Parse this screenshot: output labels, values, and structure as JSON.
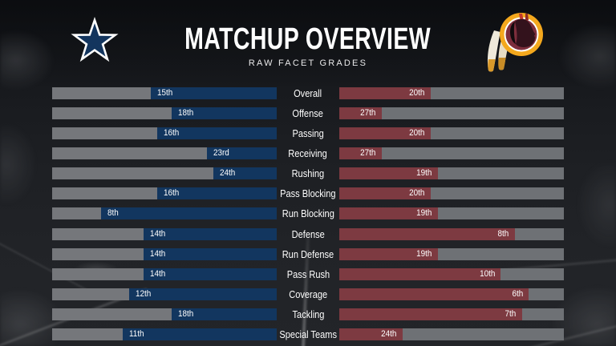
{
  "header": {
    "title": "MATCHUP OVERVIEW",
    "subtitle": "RAW FACET GRADES",
    "left_logo": "dallas-cowboys-star-logo",
    "right_logo": "washington-redskins-logo"
  },
  "colors": {
    "left_bar": "#12365f",
    "right_bar": "#7d3a41",
    "track_left": "#75777b",
    "track_right": "#6e7175",
    "background": "#1c1e22",
    "text": "#ffffff",
    "cowboys_navy": "#13355e",
    "redskins_gold": "#f4a81d",
    "redskins_burgundy": "#7d2e3c"
  },
  "chart_data": {
    "type": "bar",
    "title": "MATCHUP OVERVIEW",
    "subtitle": "RAW FACET GRADES",
    "orientation": "horizontal-mirrored",
    "rank_scale": {
      "best": 1,
      "worst": 32,
      "bar_length_rule": "(33 - rank) / 32 of full track width"
    },
    "categories": [
      "Overall",
      "Offense",
      "Passing",
      "Receiving",
      "Rushing",
      "Pass Blocking",
      "Run Blocking",
      "Defense",
      "Run Defense",
      "Pass Rush",
      "Coverage",
      "Tackling",
      "Special Teams"
    ],
    "series": [
      {
        "name": "Dallas Cowboys",
        "side": "left",
        "color": "#12365f",
        "ranks": [
          15,
          18,
          16,
          23,
          24,
          16,
          8,
          14,
          14,
          14,
          12,
          18,
          11
        ],
        "labels": [
          "15th",
          "18th",
          "16th",
          "23rd",
          "24th",
          "16th",
          "8th",
          "14th",
          "14th",
          "14th",
          "12th",
          "18th",
          "11th"
        ]
      },
      {
        "name": "Washington Redskins",
        "side": "right",
        "color": "#7d3a41",
        "ranks": [
          20,
          27,
          20,
          27,
          19,
          20,
          19,
          8,
          19,
          10,
          6,
          7,
          24
        ],
        "labels": [
          "20th",
          "27th",
          "20th",
          "27th",
          "19th",
          "20th",
          "19th",
          "8th",
          "19th",
          "10th",
          "6th",
          "7th",
          "24th"
        ]
      }
    ]
  }
}
